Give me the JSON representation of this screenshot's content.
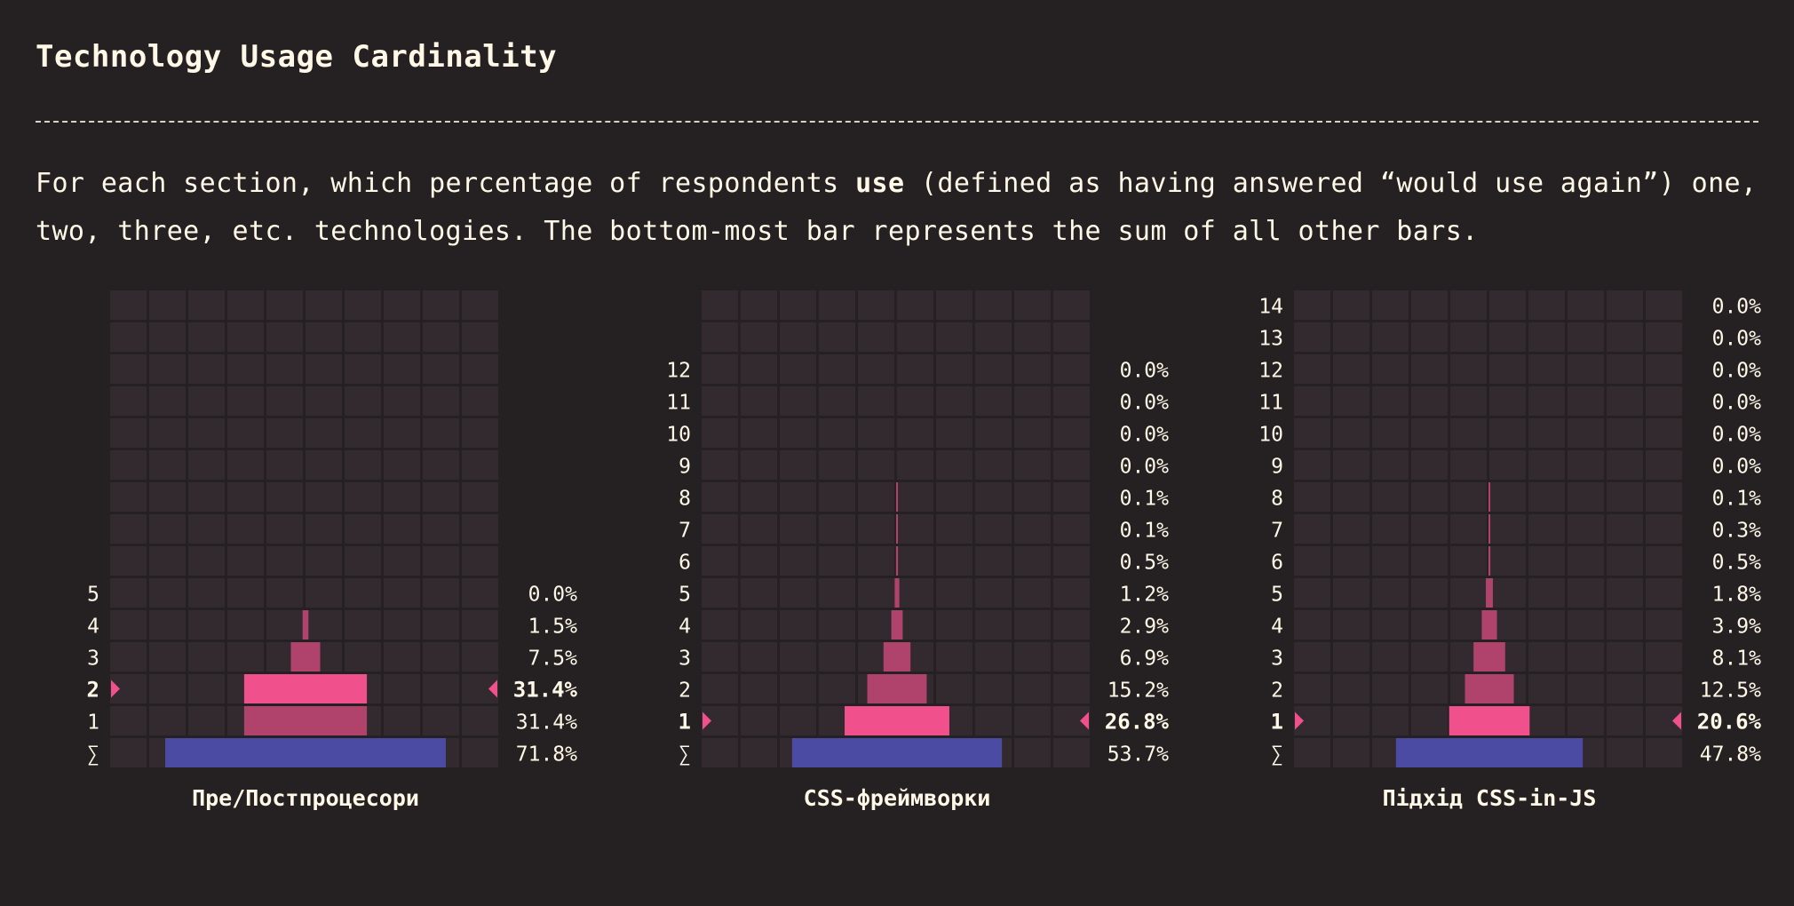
{
  "page": {
    "title": "Technology Usage Cardinality",
    "desc_before": "For each section, which percentage of respondents ",
    "desc_bold": "use",
    "desc_after": " (defined as having answered “would use again”) one, two, three, etc. technologies. The bottom-most bar represents the sum of all other bars."
  },
  "colors": {
    "background": "#252123",
    "cell": "#332a2f",
    "bar": "#b0436b",
    "highlight_bar": "#f0508c",
    "sum_bar": "#4c4ba3",
    "marker": "#f0508c",
    "text": "#fff8e7"
  },
  "chart_data": [
    {
      "type": "bar",
      "orientation": "horizontal-centered",
      "title": "Пре/Постпроцесори",
      "categories": [
        "5",
        "4",
        "3",
        "2",
        "1",
        "∑"
      ],
      "values": [
        0.0,
        1.5,
        7.5,
        31.4,
        31.4,
        71.8
      ],
      "value_labels": [
        "0.0%",
        "1.5%",
        "7.5%",
        "31.4%",
        "31.4%",
        "71.8%"
      ],
      "highlight": "2",
      "ylim": [
        0,
        100
      ]
    },
    {
      "type": "bar",
      "orientation": "horizontal-centered",
      "title": "CSS-фреймворки",
      "categories": [
        "12",
        "11",
        "10",
        "9",
        "8",
        "7",
        "6",
        "5",
        "4",
        "3",
        "2",
        "1",
        "∑"
      ],
      "values": [
        0.0,
        0.0,
        0.0,
        0.0,
        0.1,
        0.1,
        0.5,
        1.2,
        2.9,
        6.9,
        15.2,
        26.8,
        53.7
      ],
      "value_labels": [
        "0.0%",
        "0.0%",
        "0.0%",
        "0.0%",
        "0.1%",
        "0.1%",
        "0.5%",
        "1.2%",
        "2.9%",
        "6.9%",
        "15.2%",
        "26.8%",
        "53.7%"
      ],
      "highlight": "1",
      "ylim": [
        0,
        100
      ]
    },
    {
      "type": "bar",
      "orientation": "horizontal-centered",
      "title": "Підхід CSS-in-JS",
      "categories": [
        "14",
        "13",
        "12",
        "11",
        "10",
        "9",
        "8",
        "7",
        "6",
        "5",
        "4",
        "3",
        "2",
        "1",
        "∑"
      ],
      "values": [
        0.0,
        0.0,
        0.0,
        0.0,
        0.0,
        0.0,
        0.1,
        0.3,
        0.5,
        1.8,
        3.9,
        8.1,
        12.5,
        20.6,
        47.8
      ],
      "value_labels": [
        "0.0%",
        "0.0%",
        "0.0%",
        "0.0%",
        "0.0%",
        "0.0%",
        "0.1%",
        "0.3%",
        "0.5%",
        "1.8%",
        "3.9%",
        "8.1%",
        "12.5%",
        "20.6%",
        "47.8%"
      ],
      "highlight": "1",
      "ylim": [
        0,
        100
      ]
    }
  ]
}
